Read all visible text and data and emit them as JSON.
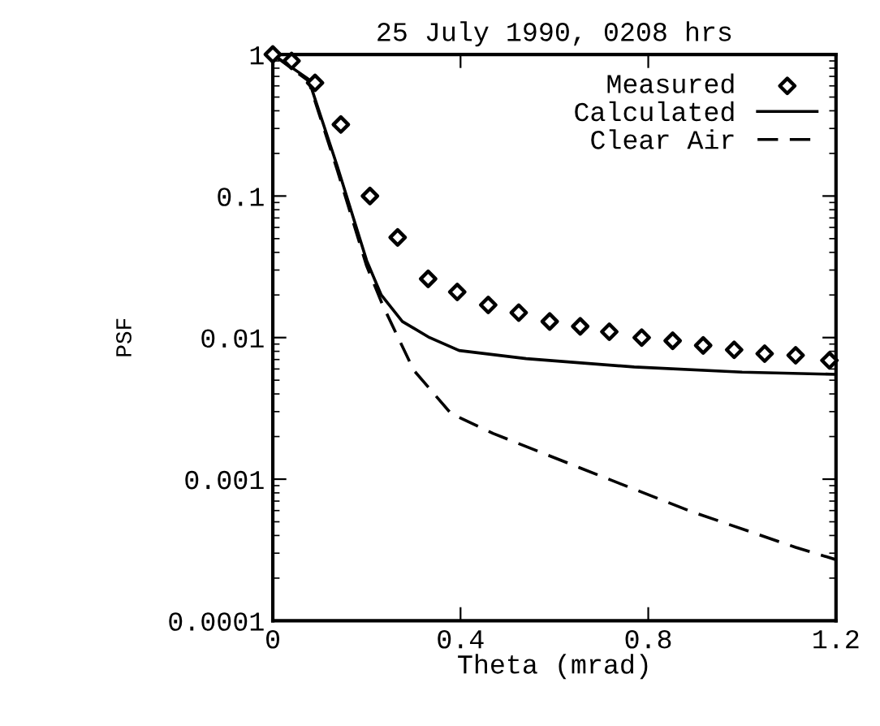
{
  "chart_data": {
    "type": "line",
    "title": "25 July 1990, 0208 hrs",
    "xlabel": "Theta (mrad)",
    "ylabel": "PSF",
    "log": "y",
    "grid": false,
    "legend": "top right",
    "xlim": [
      0,
      1.2
    ],
    "xticks": [
      0,
      0.4,
      0.8,
      1.2
    ],
    "ylim": [
      0.0001,
      1
    ],
    "yticks": [
      {
        "value": 1,
        "label": "1"
      },
      {
        "value": 0.1,
        "label": "0.1"
      },
      {
        "value": 0.01,
        "label": "0.01"
      },
      {
        "value": 0.001,
        "label": "0.001"
      },
      {
        "value": 0.0001,
        "label": "0.0001"
      }
    ],
    "series": [
      {
        "name": "Measured",
        "type": "scatter",
        "marker": "diamond",
        "color": "#000000",
        "x": [
          0,
          0.04,
          0.09,
          0.145,
          0.207,
          0.266,
          0.331,
          0.393,
          0.459,
          0.524,
          0.59,
          0.655,
          0.717,
          0.786,
          0.852,
          0.917,
          0.983,
          1.048,
          1.114,
          1.186
        ],
        "values": [
          1,
          0.9,
          0.63,
          0.32,
          0.1,
          0.051,
          0.026,
          0.021,
          0.017,
          0.015,
          0.013,
          0.012,
          0.011,
          0.01,
          0.0095,
          0.0088,
          0.0082,
          0.0077,
          0.0075,
          0.0069
        ]
      },
      {
        "name": "Calculated",
        "line_style": "solid",
        "color": "#000000",
        "x": [
          0,
          0.076,
          0.138,
          0.2,
          0.231,
          0.276,
          0.334,
          0.397,
          0.54,
          0.77,
          1.0,
          1.2
        ],
        "values": [
          1,
          0.67,
          0.16,
          0.035,
          0.02,
          0.013,
          0.01,
          0.0081,
          0.0071,
          0.0062,
          0.0057,
          0.0055
        ]
      },
      {
        "name": "Clear Air",
        "line_style": "dashed",
        "color": "#000000",
        "x": [
          0,
          0.076,
          0.138,
          0.2,
          0.234,
          0.3,
          0.38,
          0.47,
          0.655,
          0.886,
          1.114,
          1.2
        ],
        "values": [
          1,
          0.65,
          0.15,
          0.032,
          0.017,
          0.0059,
          0.0029,
          0.0021,
          0.0012,
          0.0006,
          0.00033,
          0.00027
        ]
      }
    ]
  }
}
